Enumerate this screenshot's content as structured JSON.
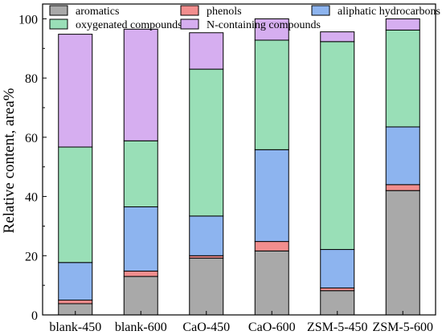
{
  "chart_data": {
    "type": "bar",
    "stacked": true,
    "ylabel": "Relative content, area%",
    "ylim": [
      0,
      105
    ],
    "yticks": [
      0,
      20,
      40,
      60,
      80,
      100
    ],
    "grid": false,
    "legend_position": "top",
    "categories": [
      "blank-450",
      "blank-600",
      "CaO-450",
      "CaO-600",
      "ZSM-5-450",
      "ZSM-5-600"
    ],
    "series": [
      {
        "name": "aromatics",
        "color": "#a9a9a9",
        "values": [
          3.8,
          13.0,
          19.2,
          21.6,
          8.2,
          42.0
        ]
      },
      {
        "name": "phenols",
        "color": "#f28e8e",
        "values": [
          1.2,
          1.8,
          0.8,
          3.2,
          0.9,
          2.0
        ]
      },
      {
        "name": "aliphatic hydrocarbons",
        "color": "#8db4ef",
        "values": [
          12.7,
          21.7,
          13.4,
          31.0,
          13.0,
          19.5
        ]
      },
      {
        "name": "oxygenated compounds",
        "color": "#99dfb7",
        "values": [
          39.0,
          22.3,
          49.6,
          37.0,
          70.2,
          32.7
        ]
      },
      {
        "name": "N-containing compounds",
        "color": "#d6aef0",
        "values": [
          38.1,
          37.7,
          12.3,
          7.2,
          3.3,
          3.8
        ]
      }
    ]
  }
}
